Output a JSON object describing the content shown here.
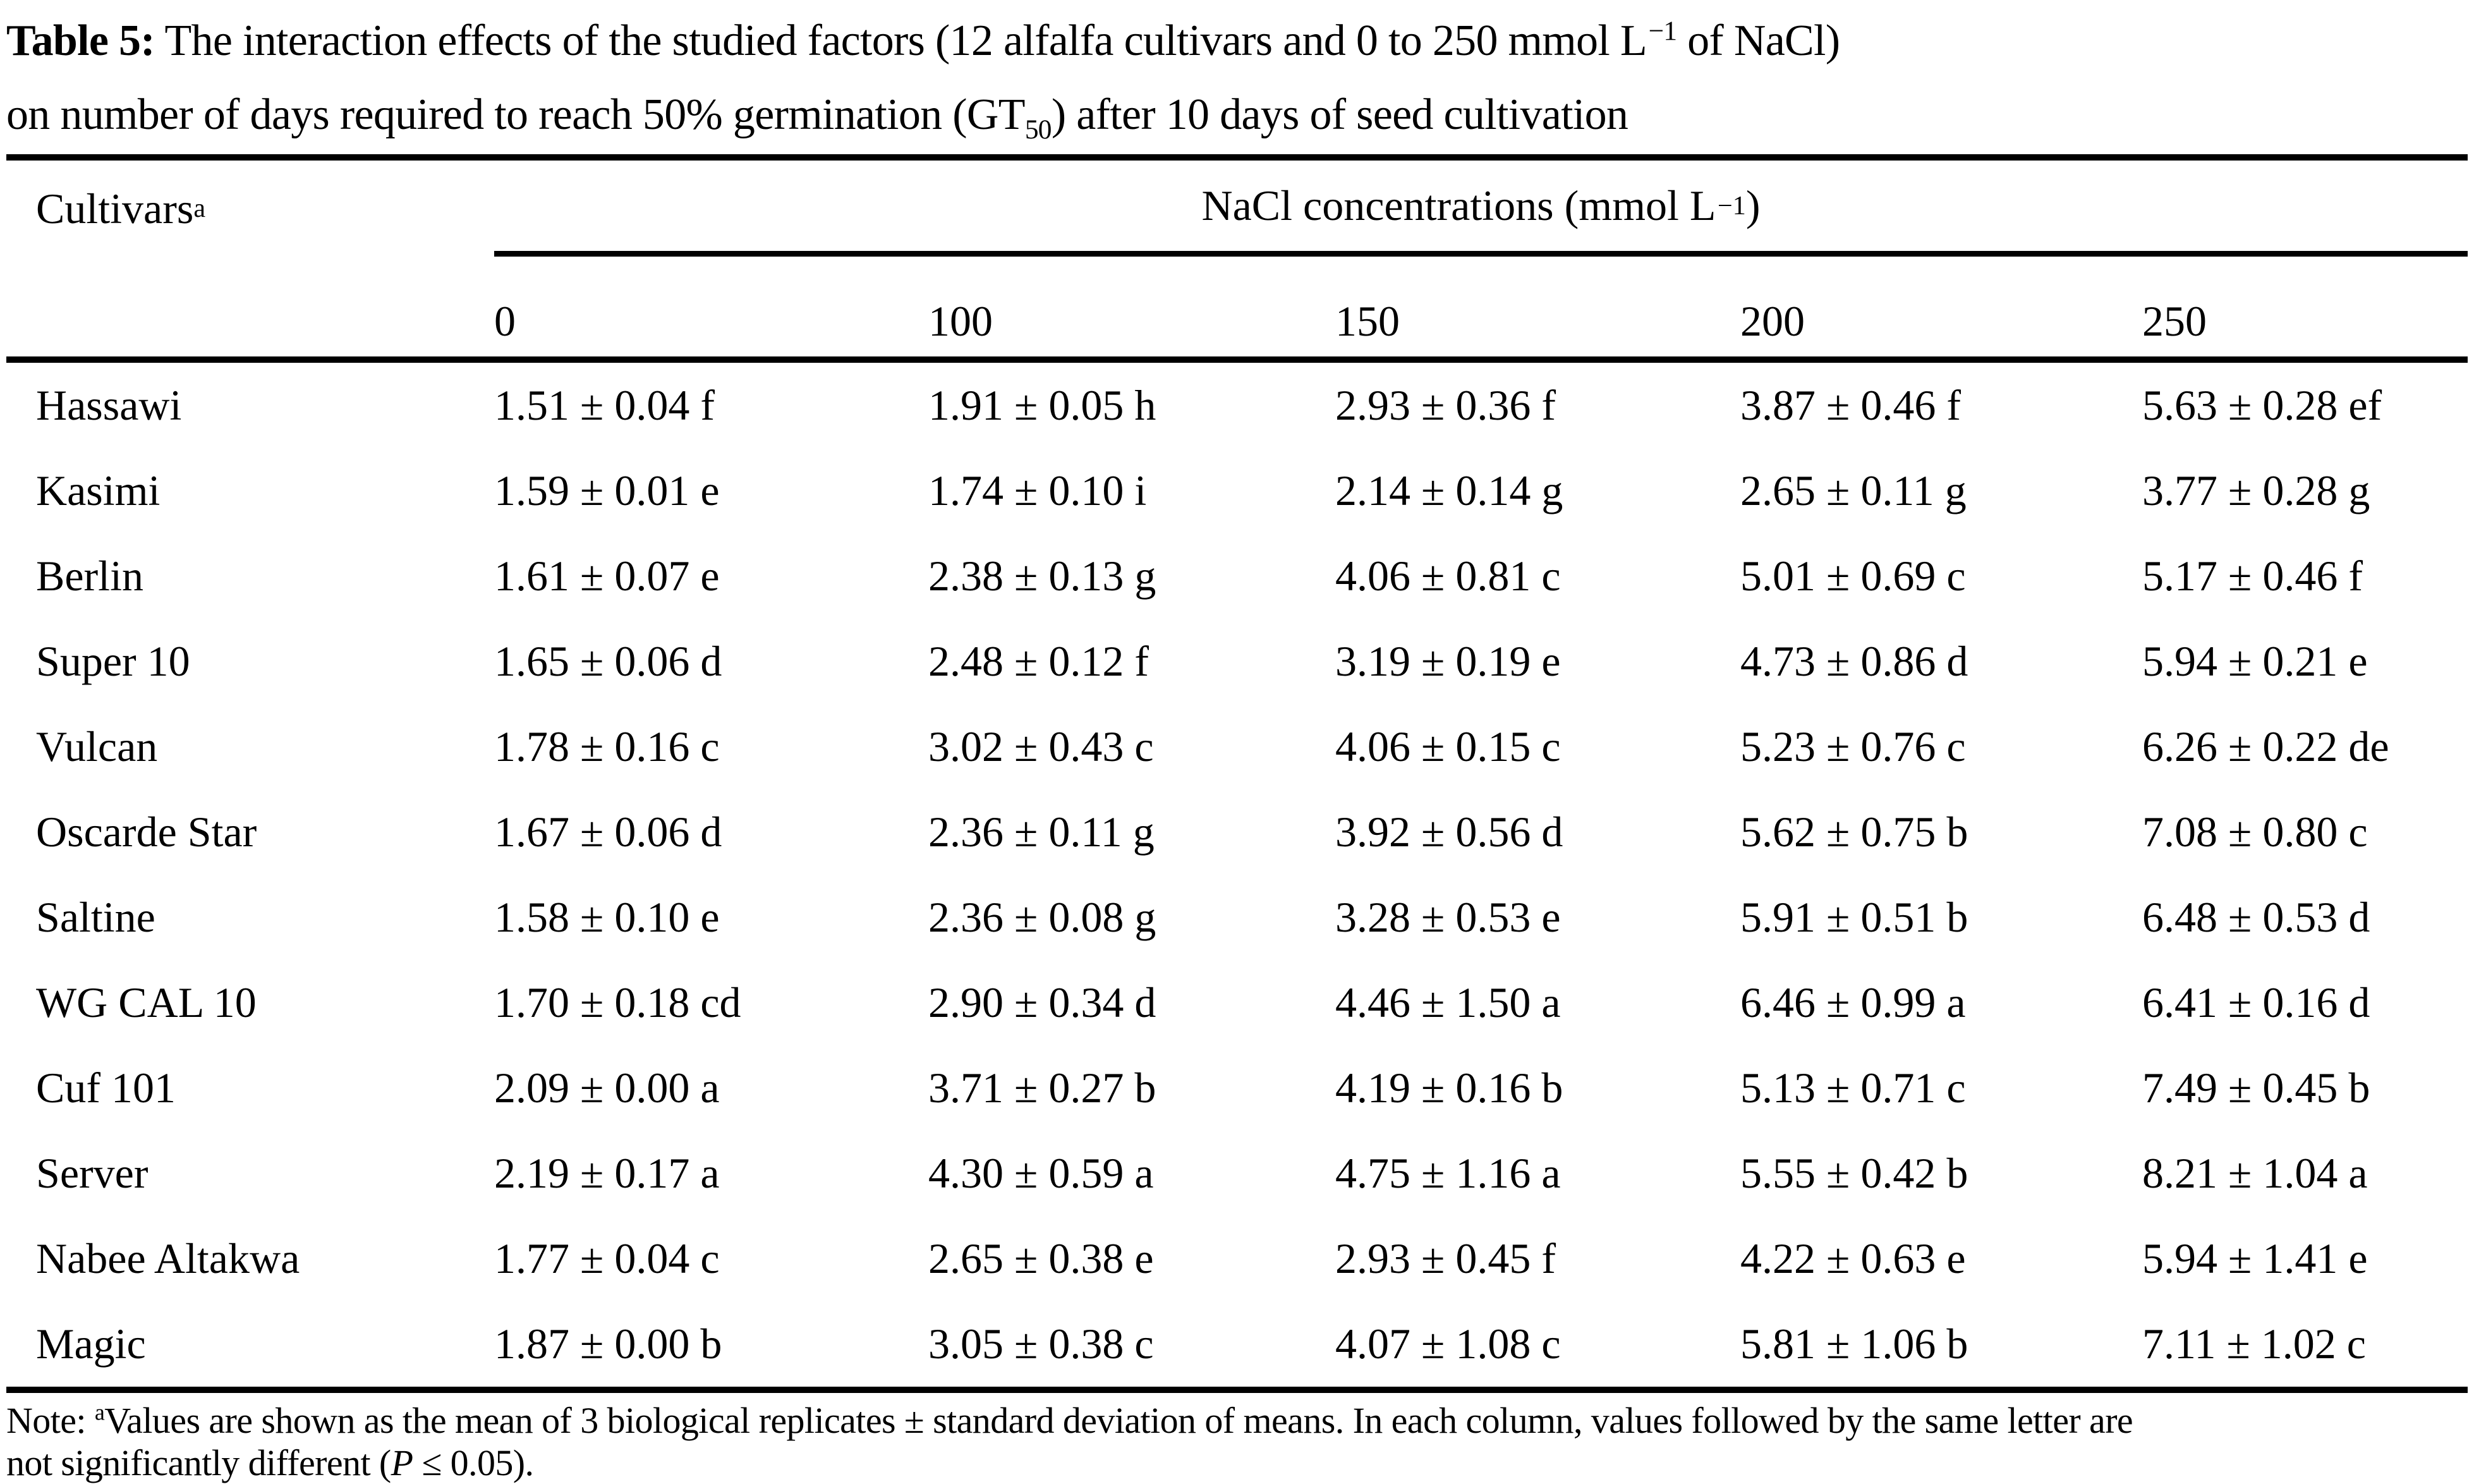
{
  "title": {
    "label": "Table 5:",
    "line1_rest": "  The interaction effects of the studied factors (12 alfalfa cultivars and 0 to 250 mmol L",
    "line1_sup": "−1",
    "line1_end": " of NaCl)",
    "line2_a": "on number of days required to reach 50% germination (GT",
    "line2_sub": "50",
    "line2_b": ") after 10 days of seed cultivation"
  },
  "table": {
    "col1_header": "Cultivars",
    "col1_header_sup": "a",
    "group_header": {
      "part1": "NaCl concentrations (mmol L",
      "sup": "−1",
      "part2": ")"
    },
    "conc_headers": [
      "0",
      "100",
      "150",
      "200",
      "250"
    ],
    "rows": [
      {
        "cultivar": "Hassawi",
        "values": [
          "1.51 ± 0.04 f",
          "1.91 ± 0.05 h",
          "2.93 ± 0.36 f",
          "3.87 ± 0.46 f",
          "5.63 ± 0.28 ef"
        ]
      },
      {
        "cultivar": "Kasimi",
        "values": [
          "1.59 ± 0.01 e",
          "1.74 ± 0.10 i",
          "2.14 ± 0.14 g",
          "2.65 ± 0.11 g",
          "3.77 ± 0.28 g"
        ]
      },
      {
        "cultivar": "Berlin",
        "values": [
          "1.61 ± 0.07 e",
          "2.38 ± 0.13 g",
          "4.06 ± 0.81 c",
          "5.01 ± 0.69 c",
          "5.17 ± 0.46 f"
        ]
      },
      {
        "cultivar": "Super 10",
        "values": [
          "1.65 ± 0.06 d",
          "2.48 ± 0.12 f",
          "3.19 ± 0.19 e",
          "4.73 ± 0.86 d",
          "5.94 ± 0.21 e"
        ]
      },
      {
        "cultivar": "Vulcan",
        "values": [
          "1.78 ± 0.16 c",
          "3.02 ± 0.43 c",
          "4.06 ± 0.15 c",
          "5.23 ± 0.76 c",
          "6.26 ± 0.22 de"
        ]
      },
      {
        "cultivar": "Oscarde Star",
        "values": [
          "1.67 ± 0.06 d",
          "2.36 ± 0.11 g",
          "3.92 ± 0.56 d",
          "5.62 ± 0.75 b",
          "7.08 ± 0.80 c"
        ]
      },
      {
        "cultivar": "Saltine",
        "values": [
          "1.58 ± 0.10 e",
          "2.36 ± 0.08 g",
          "3.28 ± 0.53 e",
          "5.91 ± 0.51 b",
          "6.48 ± 0.53 d"
        ]
      },
      {
        "cultivar": "WG CAL 10",
        "values": [
          "1.70 ± 0.18 cd",
          "2.90 ± 0.34 d",
          "4.46 ± 1.50 a",
          "6.46 ± 0.99 a",
          "6.41 ± 0.16 d"
        ]
      },
      {
        "cultivar": "Cuf 101",
        "values": [
          "2.09 ± 0.00 a",
          "3.71 ± 0.27 b",
          "4.19 ± 0.16 b",
          "5.13 ± 0.71 c",
          "7.49 ± 0.45 b"
        ]
      },
      {
        "cultivar": "Server",
        "values": [
          "2.19 ± 0.17 a",
          "4.30 ± 0.59 a",
          "4.75 ± 1.16 a",
          "5.55 ± 0.42 b",
          "8.21 ± 1.04 a"
        ]
      },
      {
        "cultivar": "Nabee Altakwa",
        "values": [
          "1.77 ± 0.04 c",
          "2.65 ± 0.38 e",
          "2.93 ± 0.45 f",
          "4.22 ± 0.63 e",
          "5.94 ± 1.41 e"
        ]
      },
      {
        "cultivar": "Magic",
        "values": [
          "1.87 ± 0.00 b",
          "3.05 ± 0.38 c",
          "4.07 ± 1.08 c",
          "5.81 ± 1.06 b",
          "7.11 ± 1.02 c"
        ]
      }
    ]
  },
  "note": {
    "prefix": "Note: ",
    "sup": "a",
    "line_a": "Values are shown as the mean of 3 biological replicates ± standard deviation of means. In each column, values followed by the same letter are",
    "line_b": "not significantly different (",
    "p": "P",
    "tail": " ≤ 0.05)."
  }
}
